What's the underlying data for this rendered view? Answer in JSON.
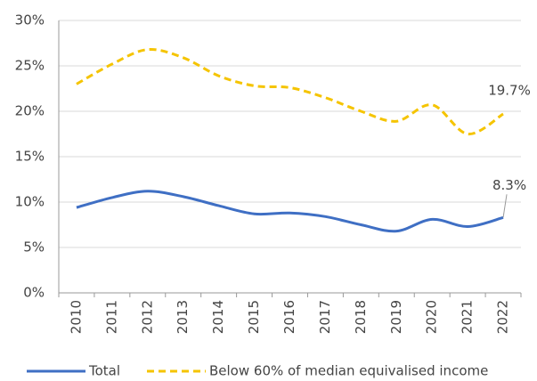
{
  "chart_data": {
    "type": "line",
    "categories": [
      "2010",
      "2011",
      "2012",
      "2013",
      "2014",
      "2015",
      "2016",
      "2017",
      "2018",
      "2019",
      "2020",
      "2021",
      "2022"
    ],
    "series": [
      {
        "name": "Total",
        "color": "#3f6fc4",
        "dash": false,
        "values": [
          9.4,
          10.5,
          11.2,
          10.6,
          9.6,
          8.7,
          8.8,
          8.4,
          7.5,
          6.8,
          8.1,
          7.3,
          8.3
        ],
        "value_labels": [
          null,
          null,
          null,
          null,
          null,
          null,
          null,
          null,
          null,
          null,
          null,
          null,
          "8.3%"
        ]
      },
      {
        "name": "Below 60% of median equivalised income",
        "color": "#f5c400",
        "dash": true,
        "values": [
          23.0,
          25.2,
          26.8,
          25.9,
          23.9,
          22.8,
          22.6,
          21.5,
          20.0,
          18.9,
          20.7,
          17.5,
          19.7
        ],
        "value_labels": [
          null,
          null,
          null,
          null,
          null,
          null,
          null,
          null,
          null,
          null,
          null,
          null,
          "19.7%"
        ]
      }
    ],
    "ylim": [
      0,
      30
    ],
    "yticks": [
      {
        "value": 0,
        "label": "0%"
      },
      {
        "value": 5,
        "label": "5%"
      },
      {
        "value": 10,
        "label": "10%"
      },
      {
        "value": 15,
        "label": "15%"
      },
      {
        "value": 20,
        "label": "20%"
      },
      {
        "value": 25,
        "label": "25%"
      },
      {
        "value": 30,
        "label": "30%"
      }
    ],
    "grid": true,
    "legend": "bottom"
  }
}
